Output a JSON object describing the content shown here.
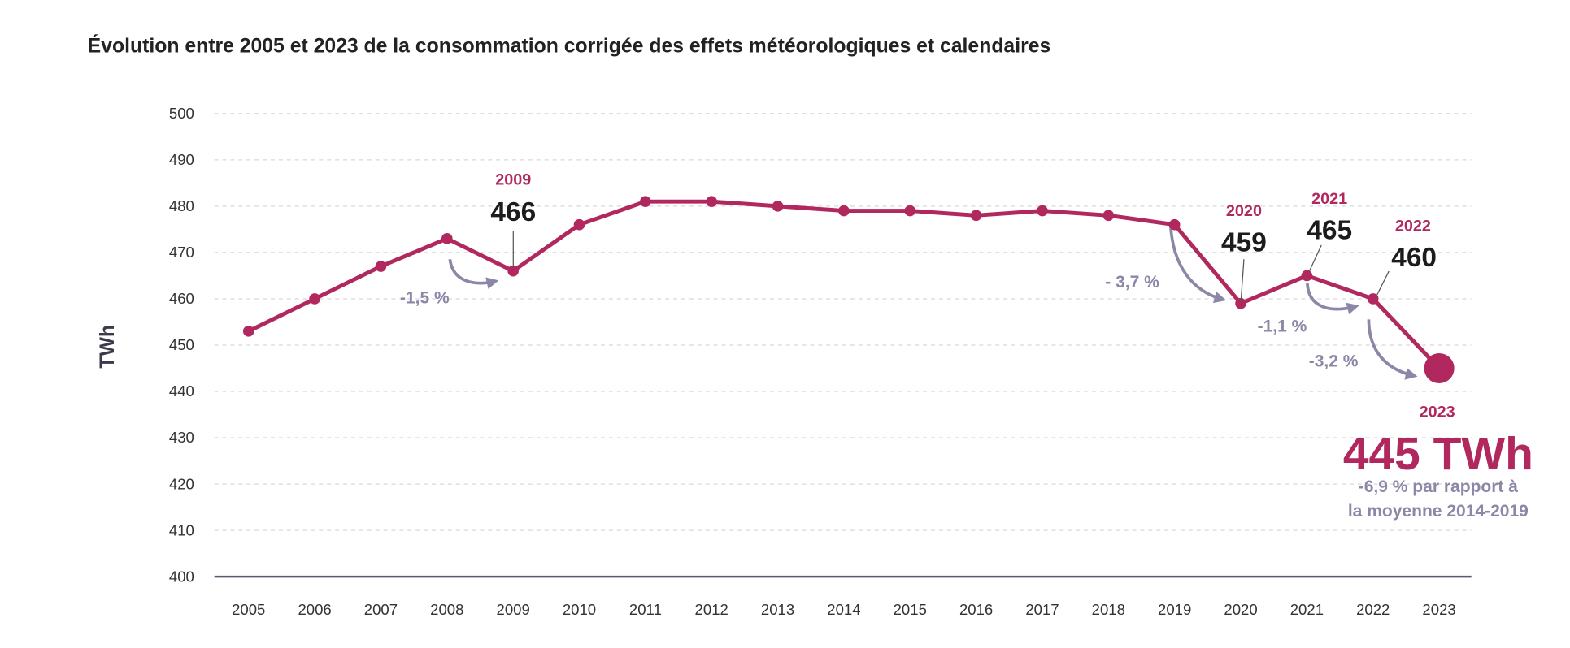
{
  "chart_data": {
    "type": "line",
    "title": "Évolution entre 2005 et 2023 de la consommation corrigée des effets météorologiques et calendaires",
    "xlabel": "",
    "ylabel": "TWh",
    "ylim": [
      400,
      500
    ],
    "yticks": [
      "400",
      "410",
      "420",
      "430",
      "440",
      "450",
      "460",
      "470",
      "480",
      "490",
      "500"
    ],
    "grid": true,
    "categories": [
      "2005",
      "2006",
      "2007",
      "2008",
      "2009",
      "2010",
      "2011",
      "2012",
      "2013",
      "2014",
      "2015",
      "2016",
      "2017",
      "2018",
      "2019",
      "2020",
      "2021",
      "2022",
      "2023"
    ],
    "values": [
      453,
      460,
      467,
      473,
      466,
      476,
      481,
      481,
      480,
      479,
      479,
      478,
      479,
      478,
      476,
      459,
      465,
      460,
      445
    ],
    "color": "#b0285e",
    "annotations": {
      "y2009": "2009",
      "v2009": "466",
      "y2020": "2020",
      "v2020": "459",
      "y2021": "2021",
      "v2021": "465",
      "y2022": "2022",
      "v2022": "460",
      "y2023": "2023",
      "v2023": "445 TWh",
      "p2009": "-1,5 %",
      "p2020": "- 3,7 %",
      "p2021": "-1,1 %",
      "p2023": "-3,2 %",
      "note1": "-6,9 % par rapport à",
      "note2": "la moyenne 2014-2019"
    },
    "arrow_color": "#8a88a6"
  }
}
